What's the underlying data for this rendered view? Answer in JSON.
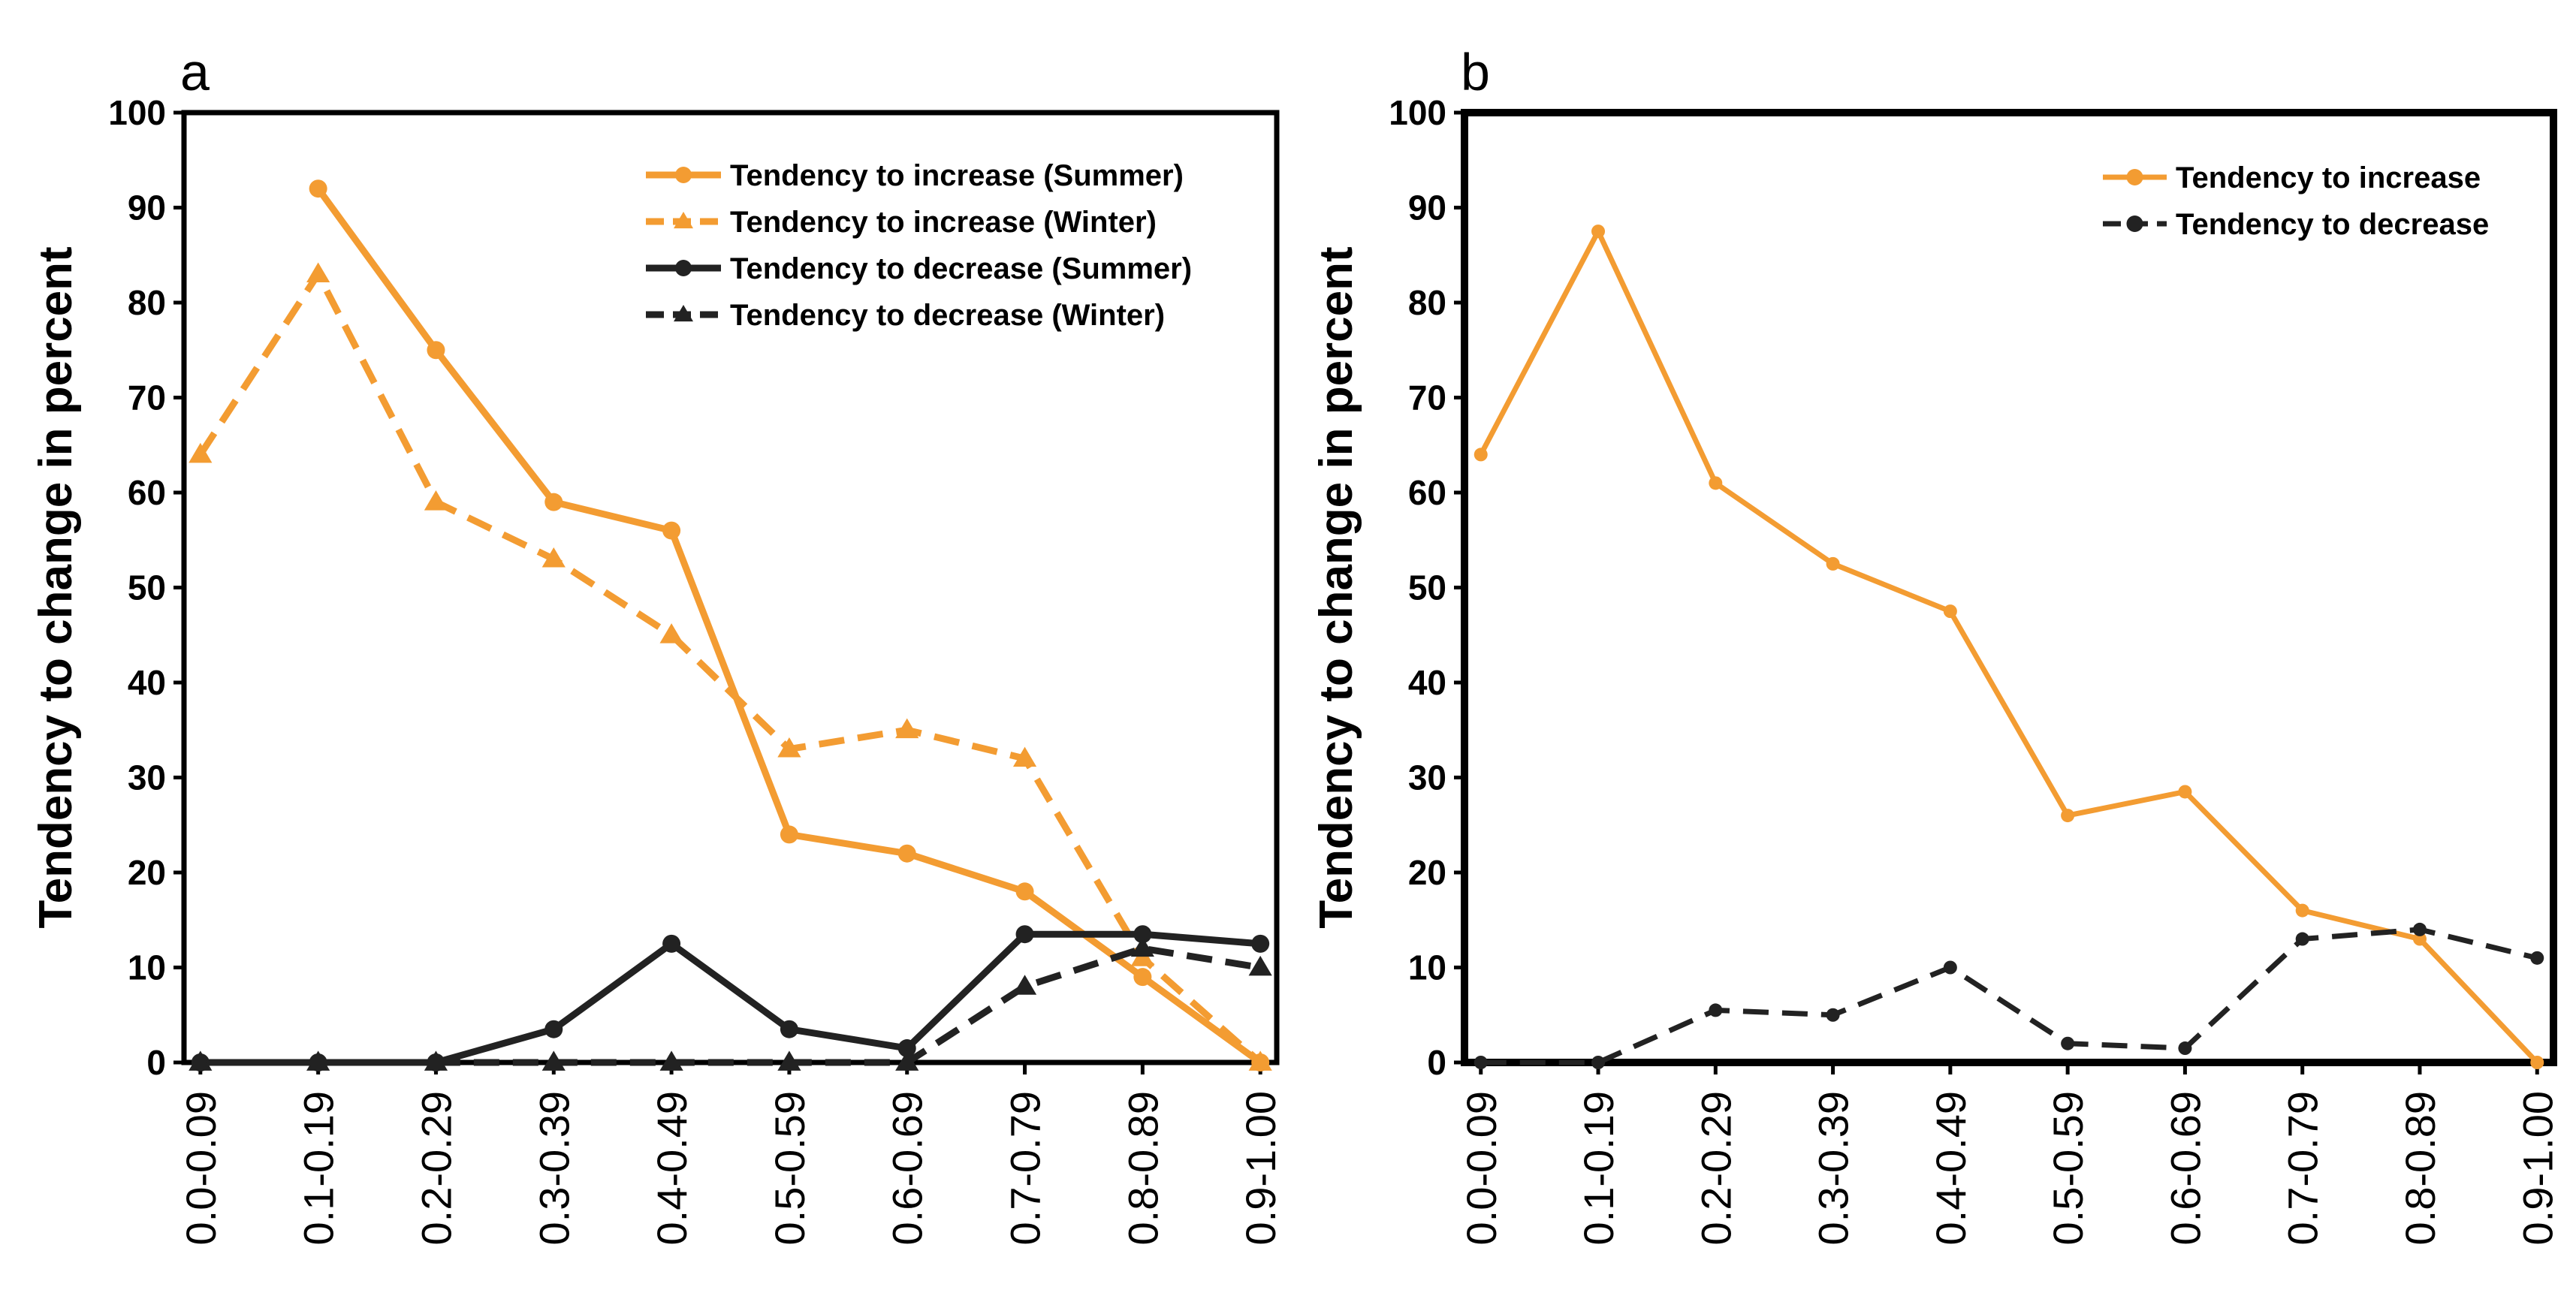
{
  "chart_data": [
    {
      "panel_label": "a",
      "type": "line",
      "ylabel": "Tendency to change in percent",
      "ylim": [
        0,
        100
      ],
      "yticks": [
        "0",
        "10",
        "20",
        "30",
        "40",
        "50",
        "60",
        "70",
        "80",
        "90",
        "100"
      ],
      "categories": [
        "0.0-0.09",
        "0.1-0.19",
        "0.2-0.29",
        "0.3-0.39",
        "0.4-0.49",
        "0.5-0.59",
        "0.6-0.69",
        "0.7-0.79",
        "0.8-0.89",
        "0.9-1.00"
      ],
      "legend": "top-right",
      "grid": false,
      "series": [
        {
          "name": "Tendency to increase (Summer)",
          "color": "#F39C32",
          "dash": "solid",
          "marker": "circle",
          "values": [
            null,
            92,
            75,
            59,
            56,
            24,
            22,
            18,
            9,
            0
          ]
        },
        {
          "name": "Tendency to increase (Winter)",
          "color": "#F39C32",
          "dash": "dashed",
          "marker": "triangle",
          "values": [
            64,
            83,
            59,
            53,
            45,
            33,
            35,
            32,
            11,
            0
          ]
        },
        {
          "name": "Tendency to decrease (Summer)",
          "color": "#222222",
          "dash": "solid",
          "marker": "circle",
          "values": [
            0,
            0,
            0,
            3.5,
            12.5,
            3.5,
            1.5,
            13.5,
            13.5,
            12.5
          ]
        },
        {
          "name": "Tendency to decrease (Winter)",
          "color": "#222222",
          "dash": "dashed",
          "marker": "triangle",
          "values": [
            0,
            0,
            0,
            0,
            0,
            0,
            0,
            8,
            12,
            10
          ]
        }
      ]
    },
    {
      "panel_label": "b",
      "type": "line",
      "ylabel": "Tendency to change in percent",
      "ylim": [
        0,
        100
      ],
      "yticks": [
        "0",
        "10",
        "20",
        "30",
        "40",
        "50",
        "60",
        "70",
        "80",
        "90",
        "100"
      ],
      "categories": [
        "0.0-0.09",
        "0.1-0.19",
        "0.2-0.29",
        "0.3-0.39",
        "0.4-0.49",
        "0.5-0.59",
        "0.6-0.69",
        "0.7-0.79",
        "0.8-0.89",
        "0.9-1.00"
      ],
      "legend": "top-right",
      "grid": false,
      "series": [
        {
          "name": "Tendency to increase",
          "color": "#F39C32",
          "dash": "solid",
          "marker": "circle",
          "values": [
            64,
            87.5,
            61,
            52.5,
            47.5,
            26,
            28.5,
            16,
            13,
            0
          ]
        },
        {
          "name": "Tendency to decrease",
          "color": "#222222",
          "dash": "dashed",
          "marker": "circle",
          "values": [
            0,
            0,
            5.5,
            5,
            10,
            2,
            1.5,
            13,
            14,
            11
          ]
        }
      ]
    }
  ]
}
